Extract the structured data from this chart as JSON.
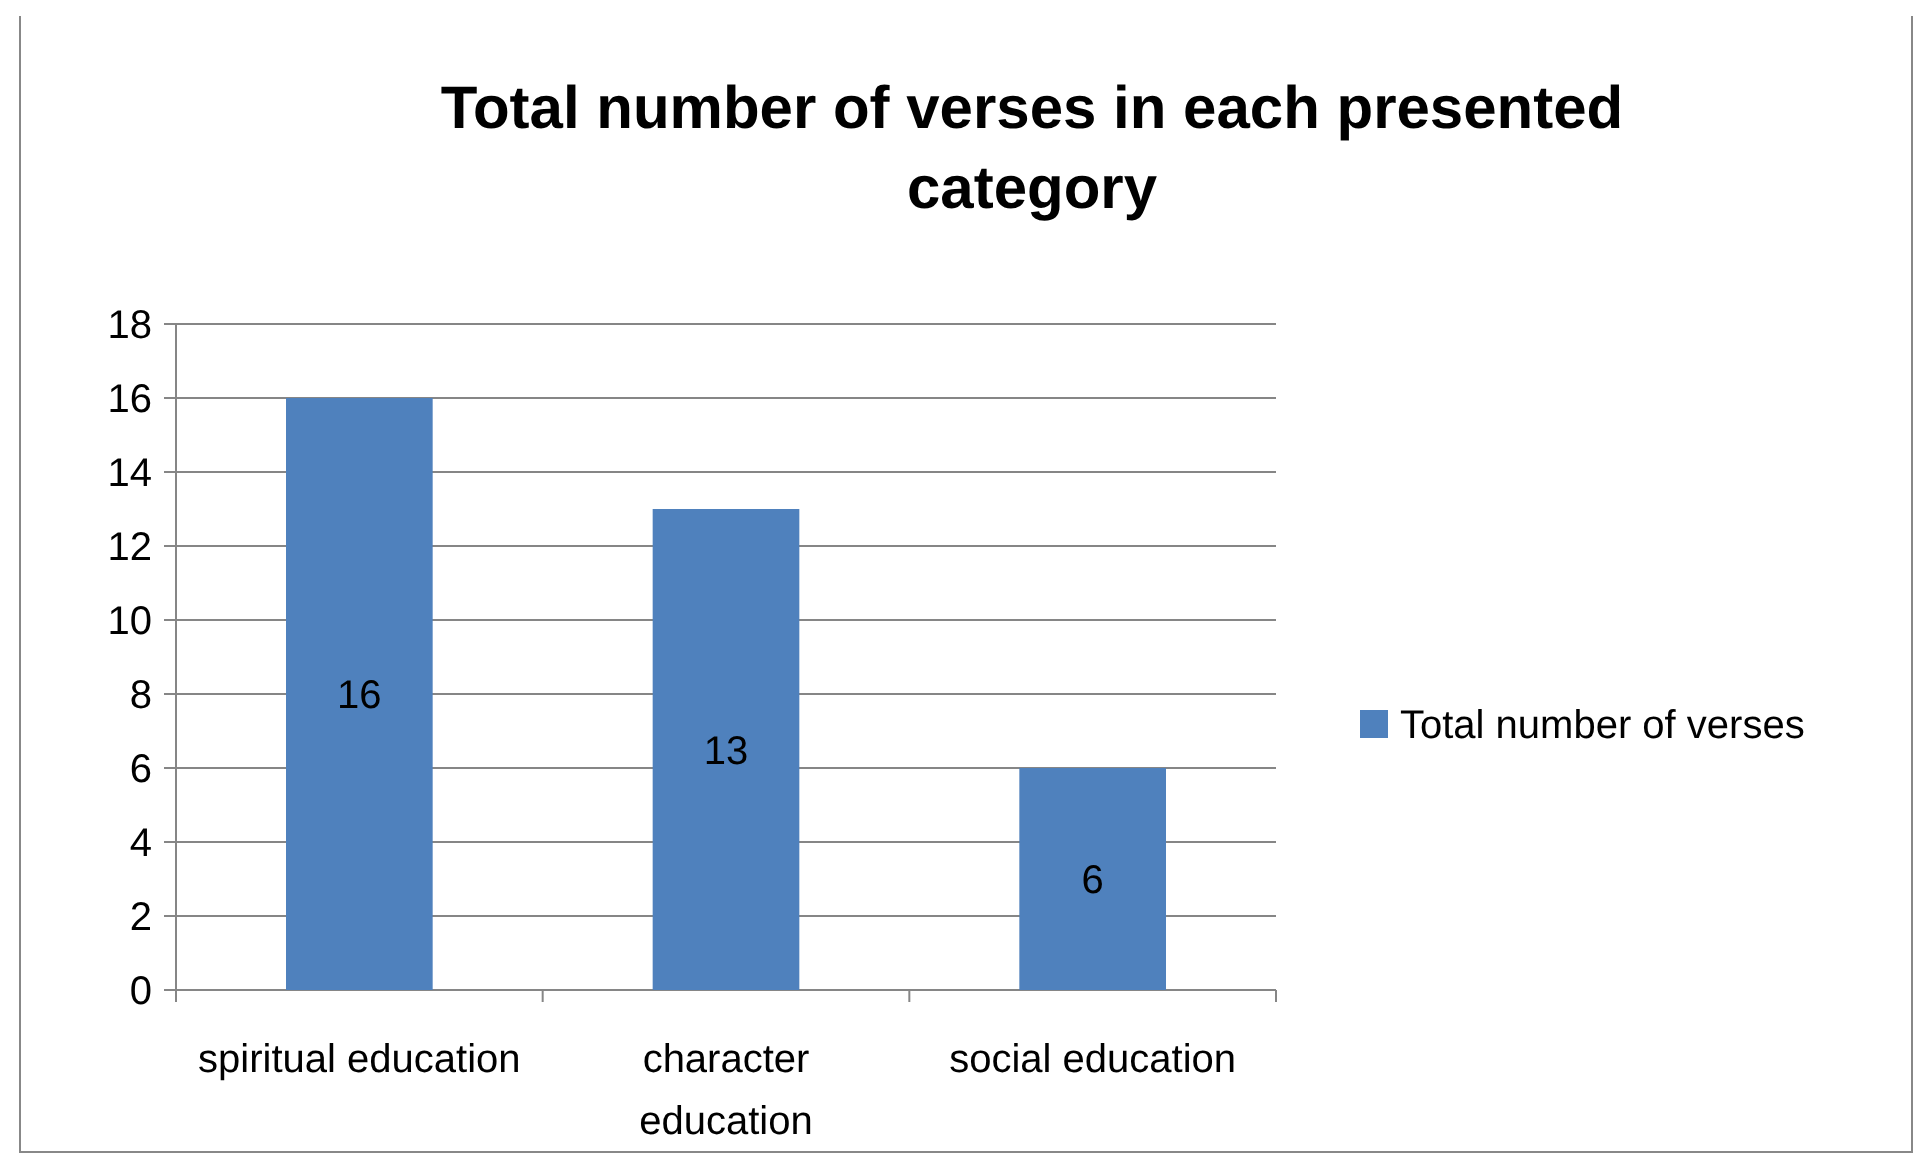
{
  "chart_data": {
    "type": "bar",
    "title": "Total number of verses in each presented category",
    "categories": [
      "spiritual education",
      "character education",
      "social education"
    ],
    "series": [
      {
        "name": "Total number of verses",
        "color": "#4f81bd",
        "values": [
          16,
          13,
          6
        ]
      }
    ],
    "ylim": [
      0,
      18
    ],
    "yticks": [
      0,
      2,
      4,
      6,
      8,
      10,
      12,
      14,
      16,
      18
    ],
    "grid": "y",
    "legend": "right",
    "data_labels": true
  }
}
